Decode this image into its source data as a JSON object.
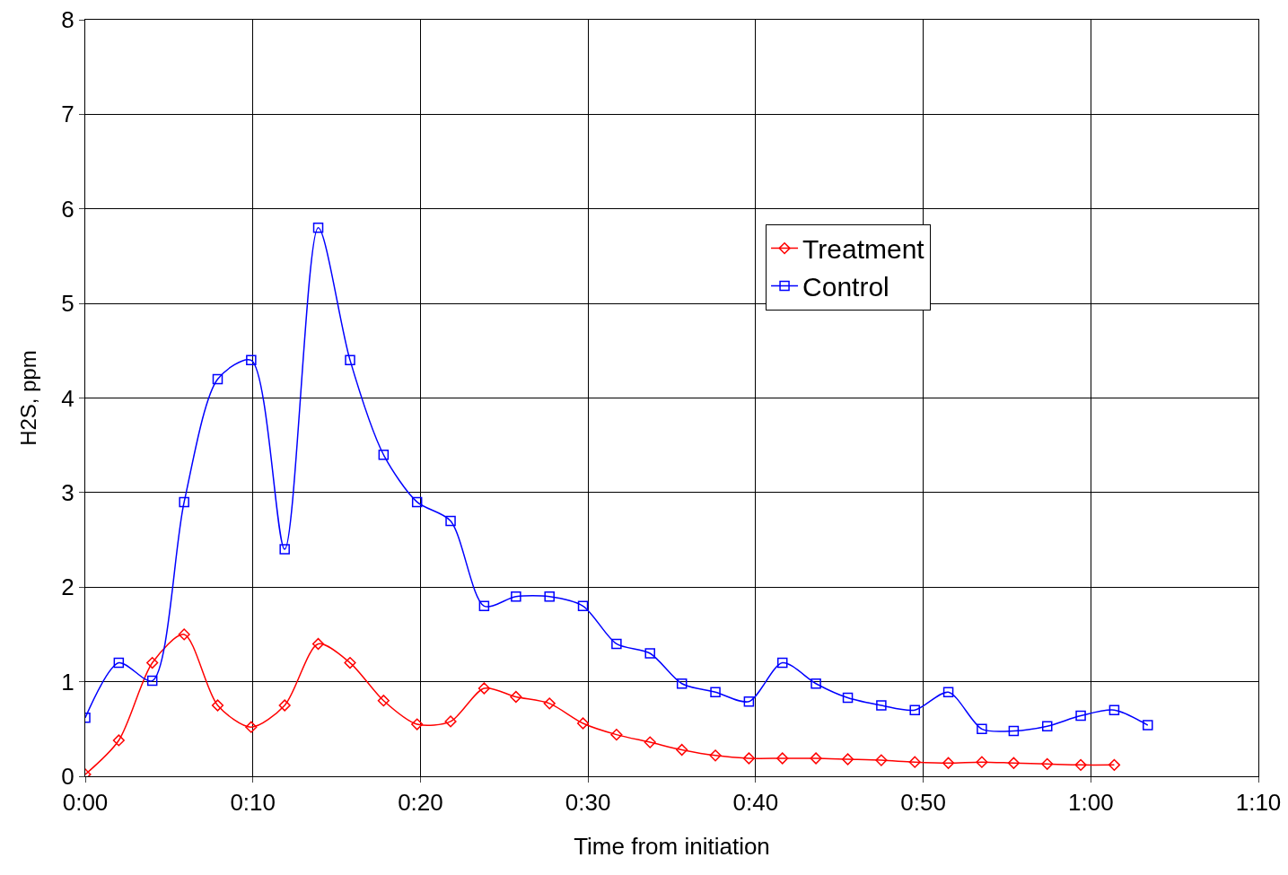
{
  "chart_data": {
    "type": "line",
    "xlabel": "Time from initiation",
    "ylabel": "H2S, ppm",
    "xlim": [
      0,
      70
    ],
    "ylim": [
      0,
      8
    ],
    "xticks": [
      {
        "value": 0,
        "label": "0:00"
      },
      {
        "value": 10,
        "label": "0:10"
      },
      {
        "value": 20,
        "label": "0:20"
      },
      {
        "value": 30,
        "label": "0:30"
      },
      {
        "value": 40,
        "label": "0:40"
      },
      {
        "value": 50,
        "label": "0:50"
      },
      {
        "value": 60,
        "label": "1:00"
      },
      {
        "value": 70,
        "label": "1:10"
      }
    ],
    "yticks": [
      0,
      1,
      2,
      3,
      4,
      5,
      6,
      7,
      8
    ],
    "grid": true,
    "legend": "top right",
    "series": [
      {
        "name": "Treatment",
        "color": "#ff0000",
        "marker": "diamond",
        "x": [
          0,
          2,
          4,
          5.9,
          7.9,
          9.9,
          11.9,
          13.9,
          15.8,
          17.8,
          19.8,
          21.8,
          23.8,
          25.7,
          27.7,
          29.7,
          31.7,
          33.7,
          35.6,
          37.6,
          39.6,
          41.6,
          43.6,
          45.5,
          47.5,
          49.5,
          51.5,
          53.5,
          55.4,
          57.4,
          59.4,
          61.4
        ],
        "values": [
          0.02,
          0.38,
          1.2,
          1.5,
          0.75,
          0.52,
          0.75,
          1.4,
          1.2,
          0.8,
          0.55,
          0.58,
          0.93,
          0.84,
          0.77,
          0.56,
          0.44,
          0.36,
          0.28,
          0.22,
          0.19,
          0.19,
          0.19,
          0.18,
          0.17,
          0.15,
          0.14,
          0.15,
          0.14,
          0.13,
          0.12,
          0.12
        ]
      },
      {
        "name": "Control",
        "color": "#0000ff",
        "marker": "square",
        "x": [
          0,
          2,
          4,
          5.9,
          7.9,
          9.9,
          11.9,
          13.9,
          15.8,
          17.8,
          19.8,
          21.8,
          23.8,
          25.7,
          27.7,
          29.7,
          31.7,
          33.7,
          35.6,
          37.6,
          39.6,
          41.6,
          43.6,
          45.5,
          47.5,
          49.5,
          51.5,
          53.5,
          55.4,
          57.4,
          59.4,
          61.4,
          63.4
        ],
        "values": [
          0.62,
          1.2,
          1.01,
          2.9,
          4.2,
          4.4,
          2.4,
          5.8,
          4.4,
          3.4,
          2.9,
          2.7,
          1.8,
          1.9,
          1.9,
          1.8,
          1.4,
          1.3,
          0.98,
          0.89,
          0.79,
          1.2,
          0.98,
          0.83,
          0.75,
          0.7,
          0.89,
          0.5,
          0.48,
          0.53,
          0.64,
          0.7,
          0.54
        ]
      }
    ]
  }
}
